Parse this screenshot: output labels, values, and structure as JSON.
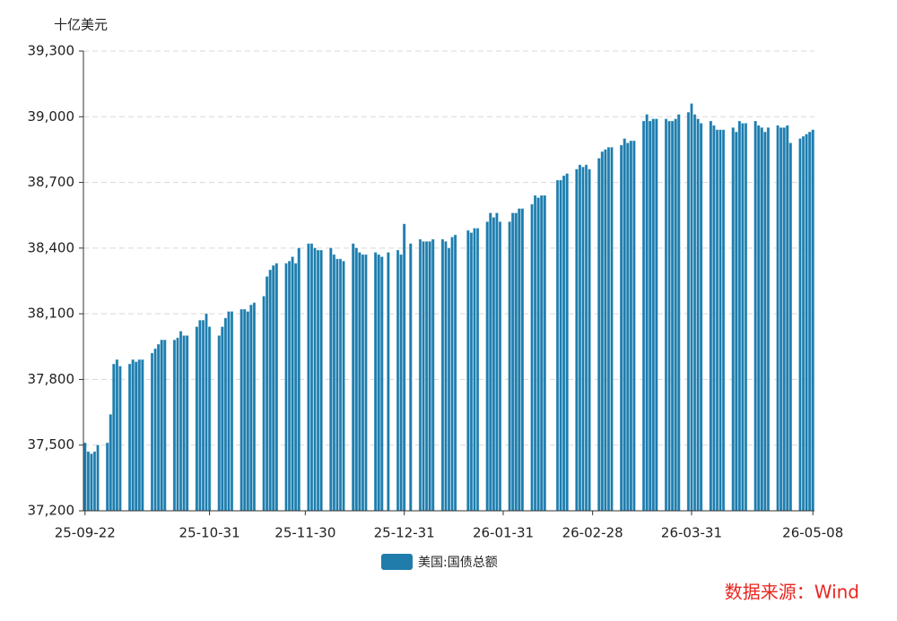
{
  "chart_data": {
    "type": "bar",
    "y_axis_label": "十亿美元",
    "source": "数据来源：Wind",
    "series": [
      {
        "name": "美国:国债总额",
        "color": "#1f7cab",
        "values": [
          37510,
          37470,
          37460,
          37470,
          37500,
          null,
          null,
          37510,
          37640,
          37870,
          37890,
          37860,
          null,
          null,
          37870,
          37890,
          37880,
          37890,
          37890,
          null,
          null,
          37920,
          37940,
          37960,
          37980,
          37980,
          null,
          null,
          37980,
          37990,
          38020,
          38000,
          38000,
          null,
          null,
          38040,
          38070,
          38070,
          38100,
          38040,
          null,
          null,
          38000,
          38040,
          38080,
          38110,
          38110,
          null,
          null,
          38120,
          38120,
          38110,
          38140,
          38150,
          null,
          null,
          38180,
          38270,
          38300,
          38320,
          38330,
          null,
          null,
          38330,
          38340,
          38360,
          38330,
          38400,
          null,
          null,
          38420,
          38420,
          38400,
          38390,
          38390,
          null,
          null,
          38400,
          38370,
          38350,
          38350,
          38340,
          null,
          null,
          38420,
          38400,
          38380,
          38370,
          38370,
          null,
          null,
          38380,
          38370,
          38360,
          null,
          38380,
          null,
          null,
          38390,
          38370,
          38510,
          null,
          38420,
          null,
          null,
          38440,
          38430,
          38430,
          38430,
          38440,
          null,
          null,
          38440,
          38430,
          38400,
          38450,
          38460,
          null,
          null,
          null,
          38480,
          38470,
          38490,
          38490,
          null,
          null,
          38520,
          38560,
          38540,
          38560,
          38520,
          null,
          null,
          38520,
          38560,
          38560,
          38580,
          38580,
          null,
          null,
          38600,
          38640,
          38630,
          38640,
          38640,
          null,
          null,
          null,
          38710,
          38710,
          38730,
          38740,
          null,
          null,
          38760,
          38780,
          38770,
          38780,
          38760,
          null,
          null,
          38810,
          38840,
          38850,
          38860,
          38860,
          null,
          null,
          38870,
          38900,
          38880,
          38890,
          38890,
          null,
          null,
          38980,
          39010,
          38980,
          38990,
          38990,
          null,
          null,
          38990,
          38980,
          38980,
          38990,
          39010,
          null,
          null,
          39020,
          39060,
          39010,
          38990,
          38970,
          null,
          null,
          38980,
          38960,
          38940,
          38940,
          38940,
          null,
          null,
          38950,
          38930,
          38980,
          38970,
          38970,
          null,
          null,
          38980,
          38960,
          38950,
          38930,
          38950,
          null,
          null,
          38960,
          38950,
          38950,
          38960,
          38880,
          null,
          null,
          38900,
          38910,
          38920,
          38930,
          38940
        ]
      }
    ],
    "categories": [
      "25-09-22",
      null,
      null,
      null,
      null,
      null,
      null,
      null,
      null,
      null,
      null,
      null,
      null,
      null,
      null,
      null,
      null,
      null,
      null,
      null,
      null,
      null,
      null,
      null,
      null,
      null,
      null,
      null,
      null,
      null,
      null,
      null,
      null,
      null,
      null,
      null,
      null,
      null,
      null,
      "25-10-31",
      null,
      null,
      null,
      null,
      null,
      null,
      null,
      null,
      null,
      null,
      null,
      null,
      null,
      null,
      null,
      null,
      null,
      null,
      null,
      null,
      null,
      null,
      null,
      null,
      null,
      null,
      null,
      null,
      null,
      "25-11-30",
      null,
      null,
      null,
      null,
      null,
      null,
      null,
      null,
      null,
      null,
      null,
      null,
      null,
      null,
      null,
      null,
      null,
      null,
      null,
      null,
      null,
      null,
      null,
      null,
      null,
      null,
      null,
      null,
      null,
      null,
      "25-12-31",
      null,
      null,
      null,
      null,
      null,
      null,
      null,
      null,
      null,
      null,
      null,
      null,
      null,
      null,
      null,
      null,
      null,
      null,
      null,
      null,
      null,
      null,
      null,
      null,
      null,
      null,
      null,
      null,
      null,
      null,
      "26-01-31",
      null,
      null,
      null,
      null,
      null,
      null,
      null,
      null,
      null,
      null,
      null,
      null,
      null,
      null,
      null,
      null,
      null,
      null,
      null,
      null,
      null,
      null,
      null,
      null,
      null,
      null,
      null,
      "26-02-28",
      null,
      null,
      null,
      null,
      null,
      null,
      null,
      null,
      null,
      null,
      null,
      null,
      null,
      null,
      null,
      null,
      null,
      null,
      null,
      null,
      null,
      null,
      null,
      null,
      null,
      null,
      null,
      null,
      null,
      null,
      "26-03-31",
      null,
      null,
      null,
      null,
      null,
      null,
      null,
      null,
      null,
      null,
      null,
      null,
      null,
      null,
      null,
      null,
      null,
      null,
      null,
      null,
      null,
      null,
      null,
      null,
      null,
      null,
      null,
      null,
      null,
      null,
      null,
      null,
      null,
      null,
      null,
      null,
      null,
      "26-05-08"
    ],
    "ylim": [
      37200,
      39300
    ],
    "yticks": [
      {
        "value": 37200,
        "label": "37,200"
      },
      {
        "value": 37500,
        "label": "37,500"
      },
      {
        "value": 37800,
        "label": "37,800"
      },
      {
        "value": 38100,
        "label": "38,100"
      },
      {
        "value": 38400,
        "label": "38,400"
      },
      {
        "value": 38700,
        "label": "38,700"
      },
      {
        "value": 39000,
        "label": "39,000"
      },
      {
        "value": 39300,
        "label": "39,300"
      }
    ],
    "grid": true,
    "legend": "bottom"
  }
}
